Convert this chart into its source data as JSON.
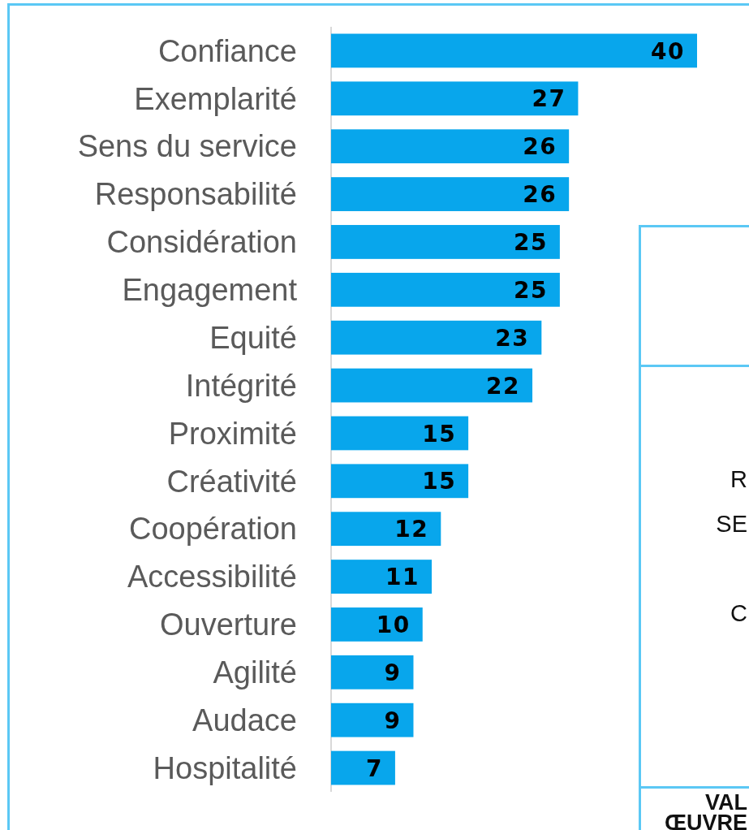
{
  "chart_data": [
    {
      "type": "bar",
      "orientation": "horizontal",
      "categories": [
        "Confiance",
        "Exemplarité",
        "Sens du service",
        "Responsabilité",
        "Considération",
        "Engagement",
        "Equité",
        "Intégrité",
        "Proximité",
        "Créativité",
        "Coopération",
        "Accessibilité",
        "Ouverture",
        "Agilité",
        "Audace",
        "Hospitalité"
      ],
      "values": [
        40,
        27,
        26,
        26,
        25,
        25,
        23,
        22,
        15,
        15,
        12,
        11,
        10,
        9,
        9,
        7
      ],
      "color": "#08a6ec",
      "data_labels": true,
      "tick_labels": "y"
    },
    {
      "type": "other",
      "annotations": [
        "R",
        "SE",
        "C",
        "VAL",
        "ŒUVRE"
      ]
    }
  ]
}
